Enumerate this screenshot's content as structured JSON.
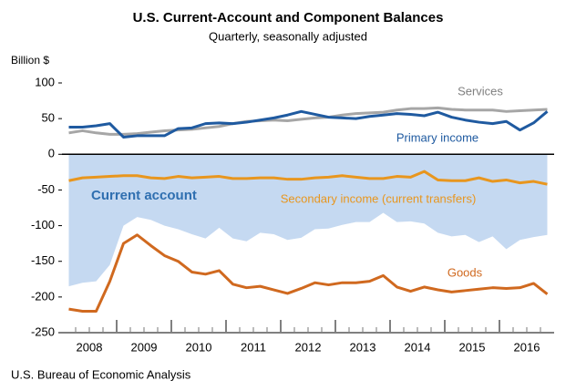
{
  "chart_data": {
    "type": "line",
    "title": "U.S. Current-Account and Component Balances",
    "subtitle": "Quarterly, seasonally adjusted",
    "y_label": "Billion $",
    "source": "U.S. Bureau of Economic Analysis",
    "x_labels": [
      "2008",
      "2009",
      "2010",
      "2011",
      "2012",
      "2013",
      "2014",
      "2015",
      "2016"
    ],
    "ylim": [
      -250,
      100
    ],
    "yticks": [
      -250,
      -200,
      -150,
      -100,
      -50,
      0,
      50,
      100
    ],
    "series": [
      {
        "name": "Current account",
        "color": "#c5d9f1",
        "label_color": "#2f6fb0",
        "area": true,
        "values": [
          -185,
          -180,
          -178,
          -155,
          -100,
          -88,
          -92,
          -100,
          -105,
          -112,
          -118,
          -103,
          -118,
          -122,
          -110,
          -112,
          -120,
          -117,
          -105,
          -104,
          -99,
          -95,
          -95,
          -82,
          -95,
          -94,
          -97,
          -110,
          -115,
          -113,
          -123,
          -115,
          -133,
          -120,
          -116,
          -113
        ]
      },
      {
        "name": "Services",
        "color": "#a6a6a6",
        "label_color": "#7f7f7f",
        "values": [
          30,
          33,
          30,
          28,
          28,
          29,
          31,
          33,
          34,
          35,
          37,
          39,
          43,
          46,
          47,
          48,
          47,
          49,
          51,
          52,
          55,
          57,
          58,
          59,
          62,
          64,
          64,
          65,
          63,
          62,
          62,
          62,
          60,
          61,
          62,
          63
        ]
      },
      {
        "name": "Primary income",
        "color": "#1f5aa0",
        "label_color": "#1f5aa0",
        "values": [
          38,
          38,
          40,
          43,
          24,
          26,
          26,
          26,
          36,
          37,
          43,
          44,
          43,
          45,
          48,
          51,
          55,
          60,
          56,
          52,
          51,
          50,
          53,
          55,
          57,
          56,
          54,
          59,
          52,
          48,
          45,
          43,
          46,
          34,
          44,
          60
        ]
      },
      {
        "name": "Secondary income (current transfers)",
        "color": "#e8961e",
        "label_color": "#e8961e",
        "values": [
          -37,
          -33,
          -32,
          -31,
          -30,
          -30,
          -33,
          -34,
          -31,
          -33,
          -32,
          -31,
          -34,
          -34,
          -33,
          -33,
          -35,
          -35,
          -33,
          -32,
          -30,
          -32,
          -34,
          -34,
          -31,
          -32,
          -24,
          -36,
          -37,
          -37,
          -33,
          -38,
          -36,
          -40,
          -38,
          -42
        ]
      },
      {
        "name": "Goods",
        "color": "#d0691f",
        "label_color": "#d0691f",
        "values": [
          -217,
          -220,
          -220,
          -178,
          -125,
          -113,
          -128,
          -142,
          -150,
          -165,
          -168,
          -163,
          -182,
          -187,
          -185,
          -190,
          -195,
          -188,
          -180,
          -183,
          -180,
          -180,
          -178,
          -170,
          -186,
          -192,
          -186,
          -190,
          -193,
          -191,
          -189,
          -187,
          -188,
          -187,
          -181,
          -196
        ]
      }
    ]
  }
}
